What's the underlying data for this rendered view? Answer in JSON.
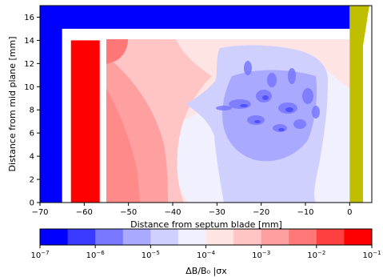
{
  "chart_data": [
    {
      "type": "heatmap",
      "xlabel": "Distance from septum blade [mm]",
      "ylabel": "Distance from mid plane [mm]",
      "xlim": [
        -70,
        5
      ],
      "ylim": [
        0,
        17
      ],
      "xticks": [
        -70,
        -60,
        -50,
        -40,
        -30,
        -20,
        -10,
        0
      ],
      "yticks": [
        0,
        2,
        4,
        6,
        8,
        10,
        12,
        14,
        16
      ],
      "grid": false,
      "regions": [
        {
          "name": "upper blue yoke",
          "color": "#0000ff",
          "x": [
            -70,
            0
          ],
          "y": [
            15,
            17
          ]
        },
        {
          "name": "left blue yoke",
          "color": "#0000ff",
          "x": [
            -70,
            -65
          ],
          "y": [
            0,
            17
          ]
        },
        {
          "name": "red coil",
          "color": "#ff0000",
          "x": [
            -63,
            -56.5
          ],
          "y": [
            0,
            14
          ]
        },
        {
          "name": "septum blade",
          "color": "#bfbf00",
          "x": [
            0,
            3
          ],
          "y": [
            0,
            17
          ]
        }
      ],
      "field_region": {
        "x": [
          -55,
          0
        ],
        "y": [
          0,
          14
        ]
      }
    },
    {
      "type": "colorbar",
      "label": "ΔB/B₀ |σx",
      "scale": "log",
      "range": [
        1e-07,
        0.1
      ],
      "tick_labels": [
        "10^{-7}",
        "10^{-6}",
        "10^{-5}",
        "10^{-4}",
        "10^{-3}",
        "10^{-2}",
        "10^{-1}"
      ],
      "colors": [
        "#0000ff",
        "#3a3aff",
        "#7777ff",
        "#a9a9ff",
        "#d0d0ff",
        "#f0f0ff",
        "#ffe4e4",
        "#ffc5c5",
        "#ffa0a0",
        "#ff7777",
        "#ff4040",
        "#ff0000"
      ]
    }
  ]
}
